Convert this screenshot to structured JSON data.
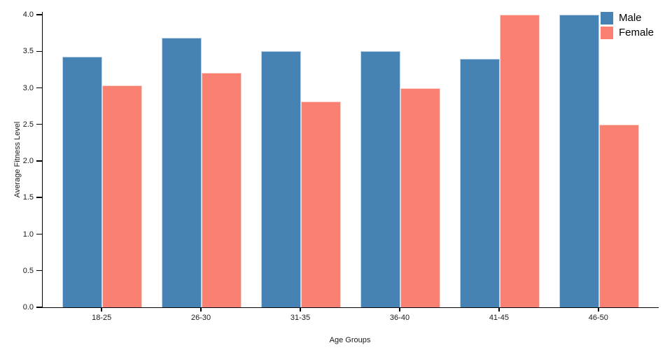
{
  "chart_data": {
    "type": "bar",
    "title": "",
    "categories": [
      "18-25",
      "26-30",
      "31-35",
      "36-40",
      "41-45",
      "46-50"
    ],
    "series": [
      {
        "name": "Male",
        "color": "#4682B4",
        "values": [
          3.43,
          3.68,
          3.5,
          3.5,
          3.4,
          4.0
        ]
      },
      {
        "name": "Female",
        "color": "#FA8072",
        "values": [
          3.03,
          3.21,
          2.81,
          3.0,
          4.0,
          2.5
        ]
      }
    ],
    "xlabel": "Age Groups",
    "ylabel": "Average Fitness Level",
    "ylim": [
      0,
      4
    ],
    "yticks": [
      0.0,
      0.5,
      1.0,
      1.5,
      2.0,
      2.5,
      3.0,
      3.5,
      4.0
    ],
    "ytick_labels": [
      "0.0",
      "0.5",
      "1.0",
      "1.5",
      "2.0",
      "2.5",
      "3.0",
      "3.5",
      "4.0"
    ],
    "grid": false,
    "legend_position": "top-right",
    "band_padding_inner": 0.2,
    "band_padding_outer": 0.2
  },
  "legend": {
    "items": [
      {
        "label": "Male",
        "color": "#4682B4"
      },
      {
        "label": "Female",
        "color": "#FA8072"
      }
    ]
  },
  "colors": {
    "male": "#4682B4",
    "female": "#FA8072",
    "axis": "#000000",
    "text": "#1a1a1a",
    "background": "#ffffff"
  }
}
